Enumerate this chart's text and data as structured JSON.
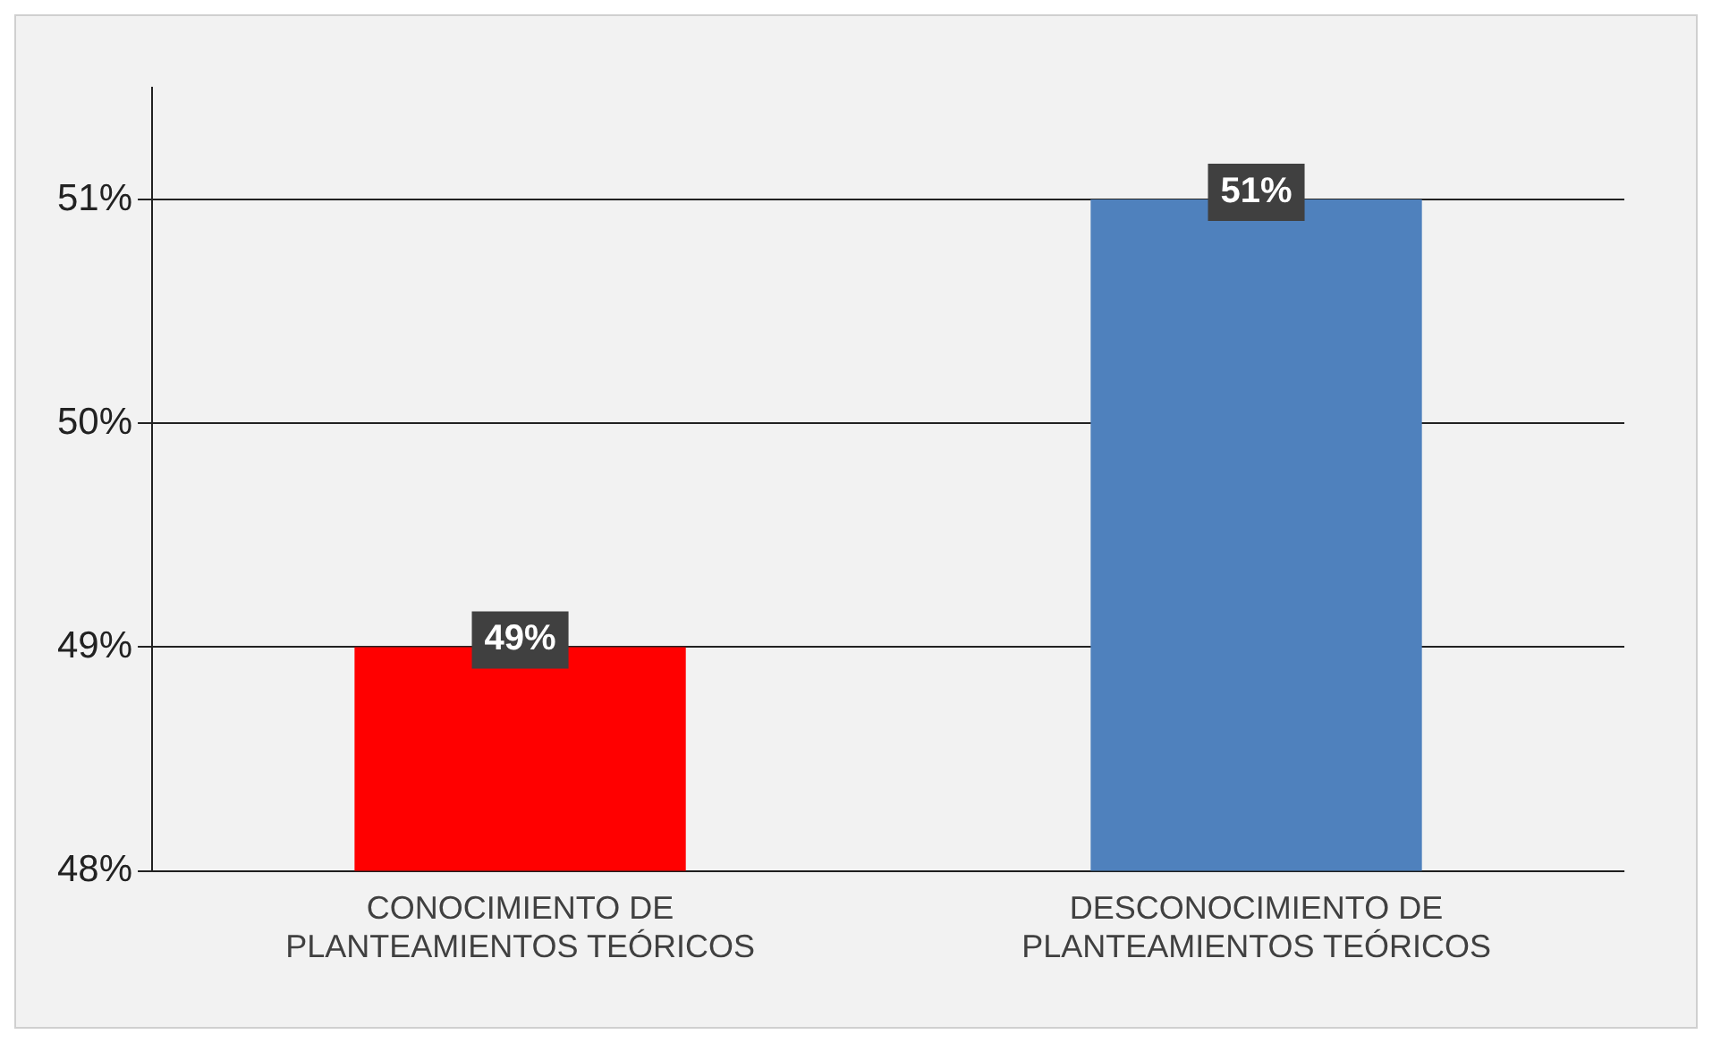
{
  "chart_data": {
    "type": "bar",
    "categories": [
      "CONOCIMIENTO DE PLANTEAMIENTOS TEÓRICOS",
      "DESCONOCIMIENTO DE PLANTEAMIENTOS TEÓRICOS"
    ],
    "values": [
      49,
      51
    ],
    "colors": [
      "#ff0000",
      "#4f81bd"
    ],
    "value_labels": [
      "49%",
      "51%"
    ],
    "ylim": [
      48,
      51.5
    ],
    "yticks": [
      {
        "value": 48,
        "label": "48%"
      },
      {
        "value": 49,
        "label": "49%"
      },
      {
        "value": 50,
        "label": "50%"
      },
      {
        "value": 51,
        "label": "51%"
      }
    ],
    "grid": "y",
    "legend": false
  }
}
